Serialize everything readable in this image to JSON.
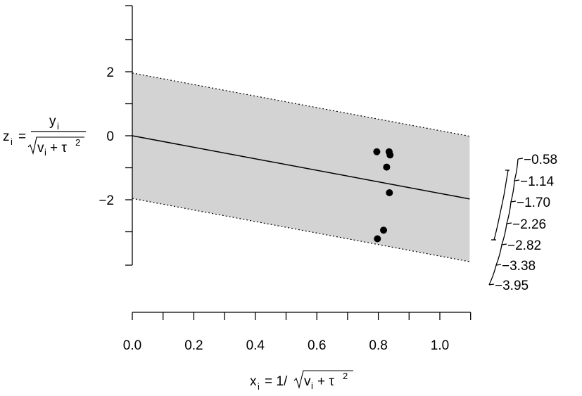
{
  "chart_data": {
    "type": "scatter",
    "subtype": "radial (Galbraith) plot",
    "x_axis": {
      "label_main": "x",
      "label_sub": "i",
      "label_eq": "= 1/",
      "label_radicand_v": "v",
      "label_radicand_sub": "i",
      "label_radicand_plus": "+ τ",
      "label_radicand_exp": "2",
      "range": [
        0,
        1.1
      ],
      "ticks": [
        0.0,
        0.2,
        0.4,
        0.6,
        0.8,
        1.0
      ],
      "tick_labels": [
        "0.0",
        "0.2",
        "0.4",
        "0.6",
        "0.8",
        "1.0"
      ]
    },
    "y_axis": {
      "label_main": "z",
      "label_sub": "i",
      "label_eq": "=",
      "label_num": "y",
      "label_num_sub": "i",
      "label_den_v": "v",
      "label_den_sub": "i",
      "label_den_plus": "+ τ",
      "label_den_exp": "2",
      "range": [
        -4,
        4
      ],
      "ticks": [
        -2,
        0,
        2
      ],
      "tick_labels": [
        "−2",
        "0",
        "2"
      ],
      "minor_ticks": [
        -4,
        -3,
        -1,
        1,
        3,
        4
      ]
    },
    "points": [
      {
        "x": 0.795,
        "y": -0.5
      },
      {
        "x": 0.835,
        "y": -0.5
      },
      {
        "x": 0.838,
        "y": -0.6
      },
      {
        "x": 0.827,
        "y": -0.98
      },
      {
        "x": 0.836,
        "y": -1.78
      },
      {
        "x": 0.817,
        "y": -2.95
      },
      {
        "x": 0.797,
        "y": -3.22
      }
    ],
    "regression_line": {
      "intercept": 0,
      "slope": -1.8
    },
    "confidence_band": {
      "half_width": 1.96
    },
    "arc_scale": {
      "labels": [
        "−0.58",
        "−1.14",
        "−1.70",
        "−2.26",
        "−2.82",
        "−3.38",
        "−3.95"
      ],
      "values": [
        -0.58,
        -1.14,
        -1.7,
        -2.26,
        -2.82,
        -3.38,
        -3.95
      ]
    },
    "band_fill": "#d3d3d3"
  }
}
